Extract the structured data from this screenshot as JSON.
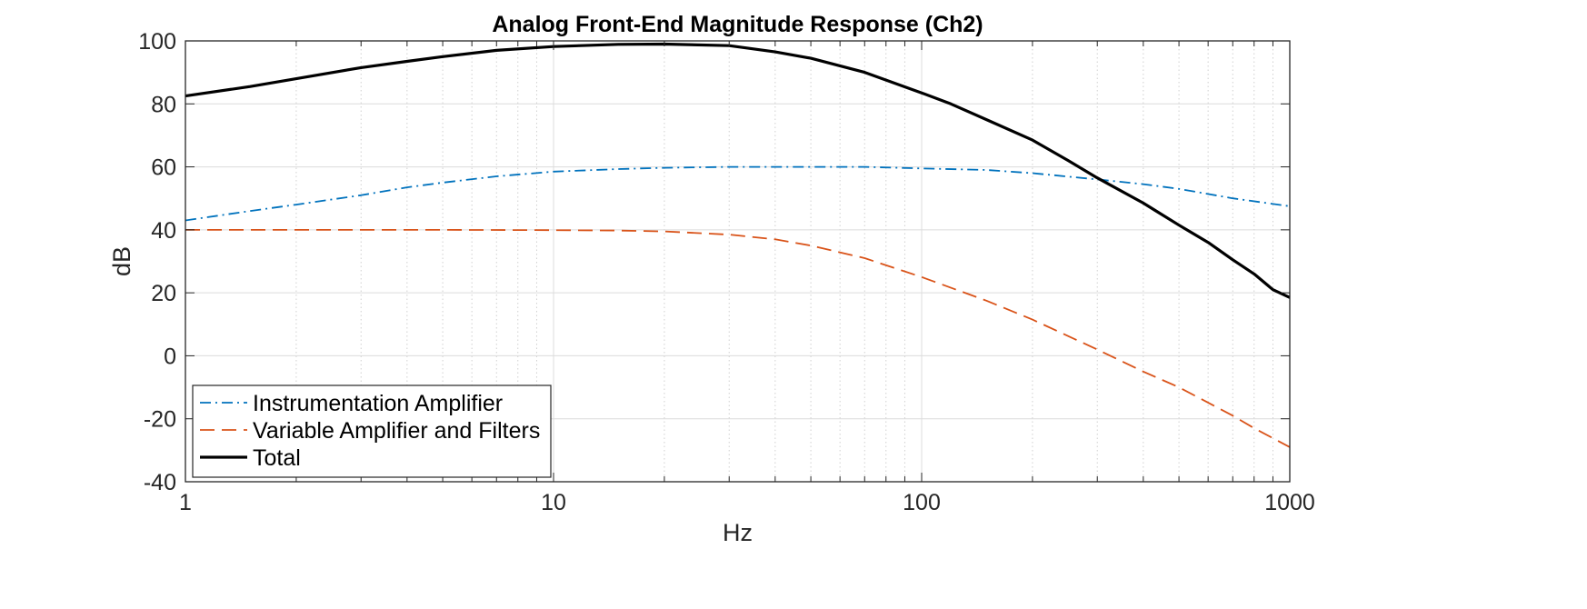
{
  "chart_data": {
    "type": "line",
    "title": "Analog Front-End Magnitude Response (Ch2)",
    "xlabel": "Hz",
    "ylabel": "dB",
    "xscale": "log",
    "xlim": [
      1,
      1000
    ],
    "ylim": [
      -40,
      100
    ],
    "xticks": [
      1,
      10,
      100,
      1000
    ],
    "xtick_labels": [
      "1",
      "10",
      "100",
      "1000"
    ],
    "yticks": [
      -40,
      -20,
      0,
      20,
      40,
      60,
      80,
      100
    ],
    "ytick_labels": [
      "-40",
      "-20",
      "0",
      "20",
      "40",
      "60",
      "80",
      "100"
    ],
    "grid": "on (major and minor, x axis log)",
    "legend_position": "bottom-left",
    "series": [
      {
        "name": "Instrumentation Amplifier",
        "color": "#0072BD",
        "linestyle": "dash-dot",
        "x": [
          1,
          1.5,
          2,
          3,
          4,
          5,
          7,
          10,
          15,
          20,
          30,
          50,
          70,
          100,
          150,
          200,
          300,
          400,
          500,
          700,
          1000
        ],
        "y": [
          43,
          46,
          48,
          51,
          53.5,
          55,
          57,
          58.5,
          59.3,
          59.7,
          60,
          60,
          60,
          59.5,
          59,
          58,
          56,
          54.5,
          53,
          50,
          47.5
        ]
      },
      {
        "name": "Variable Amplifier and Filters",
        "color": "#D95319",
        "linestyle": "dashed",
        "x": [
          1,
          2,
          5,
          10,
          15,
          20,
          30,
          40,
          50,
          70,
          100,
          150,
          200,
          300,
          400,
          500,
          700,
          800,
          1000
        ],
        "y": [
          40,
          40,
          40,
          39.9,
          39.8,
          39.5,
          38.5,
          37,
          35,
          31,
          25,
          17.5,
          11.5,
          2,
          -5,
          -10,
          -19,
          -23,
          -29
        ]
      },
      {
        "name": "Total",
        "color": "#000000",
        "linestyle": "solid",
        "x": [
          1,
          1.5,
          2,
          3,
          4,
          5,
          7,
          10,
          15,
          20,
          30,
          40,
          50,
          70,
          100,
          120,
          150,
          200,
          250,
          300,
          400,
          500,
          600,
          700,
          800,
          900,
          1000
        ],
        "y": [
          82.5,
          85.5,
          88,
          91.5,
          93.5,
          95,
          97,
          98.2,
          98.9,
          99,
          98.5,
          96.5,
          94.5,
          90,
          83.5,
          80,
          75,
          68.5,
          62,
          56.5,
          48.5,
          41.5,
          36,
          30.5,
          26,
          21,
          18.5
        ]
      }
    ]
  }
}
